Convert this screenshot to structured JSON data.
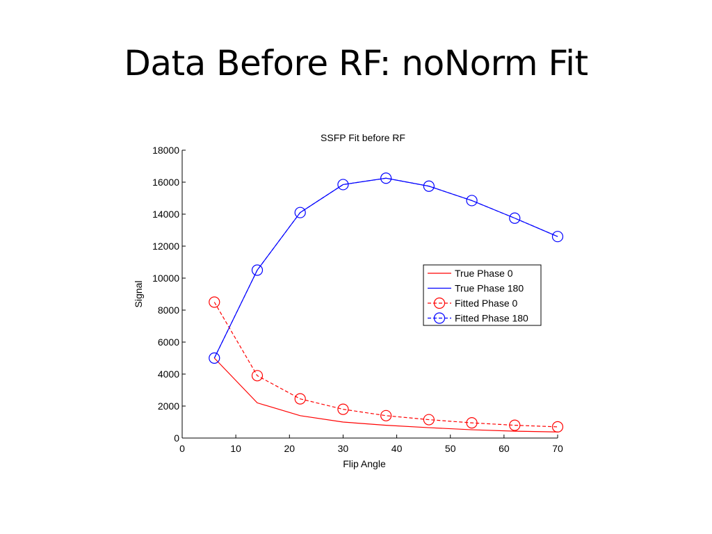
{
  "slide": {
    "title": "Data Before RF: noNorm Fit"
  },
  "colors": {
    "red": "#ff0000",
    "blue": "#0000ff",
    "axis": "#000000"
  },
  "chart_data": {
    "type": "line",
    "title": "SSFP Fit before RF",
    "xlabel": "Flip Angle",
    "ylabel": "Signal",
    "xlim": [
      0,
      70
    ],
    "ylim": [
      0,
      18000
    ],
    "xticks": [
      0,
      10,
      20,
      30,
      40,
      50,
      60,
      70
    ],
    "yticks": [
      0,
      2000,
      4000,
      6000,
      8000,
      10000,
      12000,
      14000,
      16000,
      18000
    ],
    "x": [
      6,
      14,
      22,
      30,
      38,
      46,
      54,
      62,
      70
    ],
    "legend_position": "right",
    "grid": false,
    "series": [
      {
        "name": "True Phase 0",
        "color": "#ff0000",
        "dash": "solid",
        "marker": "none",
        "values": [
          5000,
          2200,
          1400,
          1000,
          800,
          650,
          520,
          430,
          380
        ]
      },
      {
        "name": "True Phase 180",
        "color": "#0000ff",
        "dash": "solid",
        "marker": "none",
        "values": [
          5000,
          10500,
          14100,
          15850,
          16250,
          15750,
          14850,
          13750,
          12600
        ]
      },
      {
        "name": "Fitted Phase 0",
        "color": "#ff0000",
        "dash": "dashed",
        "marker": "circle",
        "values": [
          8500,
          3900,
          2450,
          1800,
          1400,
          1150,
          950,
          800,
          700
        ]
      },
      {
        "name": "Fitted Phase 180",
        "color": "#0000ff",
        "dash": "dashed",
        "marker": "circle",
        "values": [
          5000,
          10500,
          14100,
          15850,
          16250,
          15750,
          14850,
          13750,
          12600
        ]
      }
    ]
  }
}
